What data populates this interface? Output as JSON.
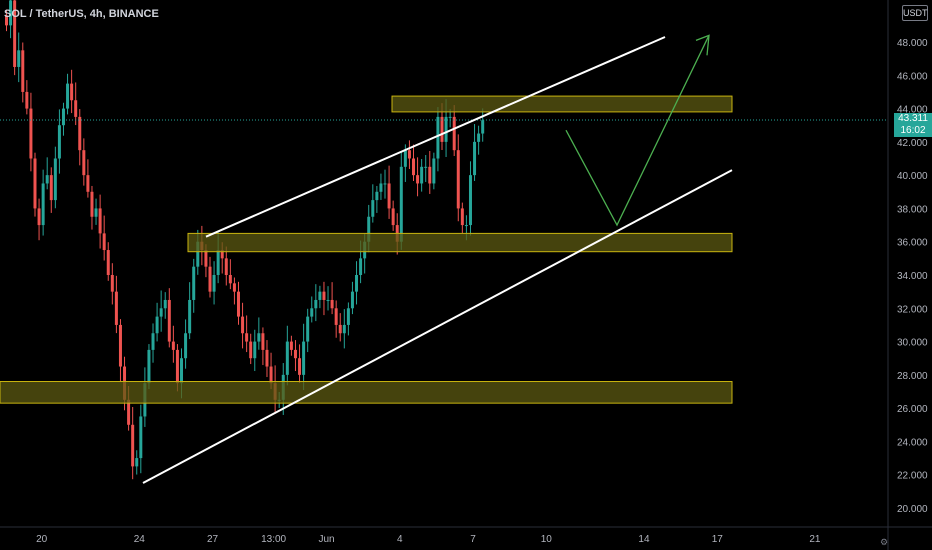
{
  "header": {
    "symbol_line": "SOL / TetherUS, 4h, BINANCE"
  },
  "price_axis": {
    "currency": "USDT",
    "last_price": "43.311",
    "countdown": "16:02"
  },
  "colors": {
    "up": "#26a69a",
    "down": "#ef5350",
    "zone_fill": "#5c5a12",
    "zone_border": "#c9b40f",
    "channel": "#ffffff",
    "projection": "#4caf50",
    "background": "#000000"
  },
  "chart_data": {
    "type": "candlestick",
    "title": "SOL / TetherUS, 4h, BINANCE",
    "ylim": [
      18.8,
      50.8
    ],
    "yticks": [
      20,
      22,
      24,
      26,
      28,
      30,
      32,
      34,
      36,
      38,
      40,
      42,
      44,
      46,
      48
    ],
    "ytick_labels": [
      "20.000",
      "22.000",
      "24.000",
      "26.000",
      "28.000",
      "30.000",
      "32.000",
      "34.000",
      "36.000",
      "38.000",
      "40.000",
      "42.000",
      "44.000",
      "46.000",
      "48.000"
    ],
    "xticks": [
      {
        "label": "20",
        "bar": 9
      },
      {
        "label": "24",
        "bar": 33
      },
      {
        "label": "27",
        "bar": 51
      },
      {
        "label": "13:00",
        "bar": 66
      },
      {
        "label": "Jun",
        "bar": 79
      },
      {
        "label": "4",
        "bar": 97
      },
      {
        "label": "7",
        "bar": 115
      },
      {
        "label": "10",
        "bar": 133
      },
      {
        "label": "14",
        "bar": 157
      },
      {
        "label": "17",
        "bar": 175
      },
      {
        "label": "21",
        "bar": 199
      }
    ],
    "bar_count_span": 220,
    "candles": {
      "close": [
        49.0,
        50.5,
        46.5,
        47.5,
        45.0,
        44.0,
        41.0,
        38.0,
        37.0,
        39.5,
        40.0,
        38.5,
        41.0,
        43.0,
        44.0,
        45.5,
        44.5,
        43.5,
        41.5,
        40.0,
        39.0,
        37.5,
        38.0,
        36.5,
        35.5,
        34.0,
        33.0,
        31.0,
        28.5,
        26.5,
        25.0,
        22.5,
        23.0,
        25.5,
        27.5,
        29.5,
        30.5,
        31.5,
        32.0,
        32.5,
        30.0,
        29.5,
        27.5,
        29.0,
        30.5,
        32.5,
        34.5,
        36.0,
        35.5,
        34.5,
        33.0,
        34.0,
        35.5,
        35.0,
        34.0,
        33.5,
        33.0,
        31.5,
        30.5,
        30.0,
        29.0,
        30.0,
        30.5,
        29.5,
        28.5,
        27.5,
        26.5,
        26.5,
        28.0,
        30.0,
        29.5,
        29.0,
        28.0,
        30.0,
        31.5,
        32.0,
        32.5,
        33.0,
        32.5,
        32.5,
        32.0,
        31.0,
        30.5,
        31.0,
        32.0,
        33.0,
        34.0,
        35.0,
        36.0,
        37.5,
        38.5,
        39.0,
        39.5,
        39.5,
        38.0,
        37.0,
        36.0,
        40.5,
        41.5,
        41.0,
        40.0,
        39.5,
        40.5,
        40.5,
        39.5,
        41.0,
        43.5,
        42.0,
        43.5,
        43.5,
        41.5,
        38.0,
        37.0,
        37.0,
        40.0,
        42.0,
        42.5,
        43.3
      ],
      "note_unused": ""
    }
  }
}
